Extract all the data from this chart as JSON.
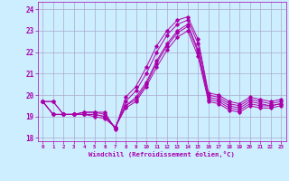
{
  "xlabel": "Windchill (Refroidissement éolien,°C)",
  "bg_color": "#cceeff",
  "grid_color": "#aaaacc",
  "line_color": "#aa00aa",
  "xlim": [
    -0.5,
    23.5
  ],
  "ylim": [
    17.85,
    24.35
  ],
  "xticks": [
    0,
    1,
    2,
    3,
    4,
    5,
    6,
    7,
    8,
    9,
    10,
    11,
    12,
    13,
    14,
    15,
    16,
    17,
    18,
    19,
    20,
    21,
    22,
    23
  ],
  "yticks": [
    18,
    19,
    20,
    21,
    22,
    23,
    24
  ],
  "series": [
    [
      19.7,
      19.7,
      19.1,
      19.1,
      19.2,
      19.2,
      19.2,
      18.4,
      19.9,
      20.4,
      21.3,
      22.3,
      23.0,
      23.5,
      23.65,
      22.6,
      20.1,
      20.0,
      19.7,
      19.6,
      19.9,
      19.8,
      19.7,
      19.8
    ],
    [
      19.7,
      19.7,
      19.1,
      19.1,
      19.2,
      19.2,
      19.1,
      18.45,
      19.7,
      20.2,
      21.0,
      22.0,
      22.8,
      23.3,
      23.5,
      22.4,
      20.0,
      19.9,
      19.6,
      19.5,
      19.8,
      19.7,
      19.6,
      19.7
    ],
    [
      19.7,
      19.1,
      19.1,
      19.1,
      19.1,
      19.1,
      19.0,
      18.5,
      19.5,
      19.9,
      20.6,
      21.6,
      22.4,
      23.0,
      23.3,
      22.1,
      19.9,
      19.8,
      19.5,
      19.4,
      19.7,
      19.6,
      19.5,
      19.6
    ],
    [
      19.7,
      19.1,
      19.1,
      19.1,
      19.1,
      19.1,
      19.0,
      18.5,
      19.5,
      19.8,
      20.5,
      21.5,
      22.3,
      22.9,
      23.2,
      22.0,
      19.8,
      19.7,
      19.4,
      19.3,
      19.6,
      19.5,
      19.5,
      19.6
    ],
    [
      19.7,
      19.1,
      19.1,
      19.1,
      19.1,
      19.0,
      18.9,
      18.5,
      19.4,
      19.7,
      20.4,
      21.3,
      22.1,
      22.7,
      23.0,
      21.8,
      19.7,
      19.6,
      19.3,
      19.2,
      19.5,
      19.4,
      19.4,
      19.5
    ]
  ]
}
